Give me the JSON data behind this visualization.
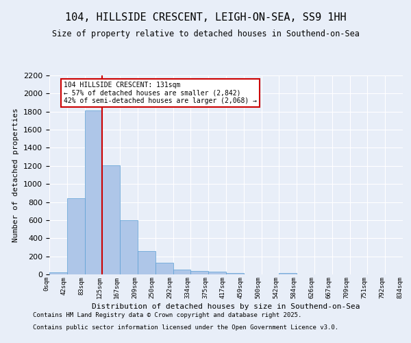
{
  "title": "104, HILLSIDE CRESCENT, LEIGH-ON-SEA, SS9 1HH",
  "subtitle": "Size of property relative to detached houses in Southend-on-Sea",
  "xlabel": "Distribution of detached houses by size in Southend-on-Sea",
  "ylabel": "Number of detached properties",
  "bar_values": [
    25,
    845,
    1810,
    1210,
    600,
    255,
    130,
    50,
    40,
    30,
    15,
    0,
    0,
    15,
    0,
    0,
    0,
    0,
    0,
    0
  ],
  "bin_labels": [
    "0sqm",
    "42sqm",
    "83sqm",
    "125sqm",
    "167sqm",
    "209sqm",
    "250sqm",
    "292sqm",
    "334sqm",
    "375sqm",
    "417sqm",
    "459sqm",
    "500sqm",
    "542sqm",
    "584sqm",
    "626sqm",
    "667sqm",
    "709sqm",
    "751sqm",
    "792sqm",
    "834sqm"
  ],
  "bar_color": "#aec6e8",
  "bar_edge_color": "#5a9fd4",
  "background_color": "#e8eef8",
  "grid_color": "#ffffff",
  "vline_x": 2.5,
  "vline_color": "#cc0000",
  "annotation_text": "104 HILLSIDE CRESCENT: 131sqm\n← 57% of detached houses are smaller (2,842)\n42% of semi-detached houses are larger (2,068) →",
  "annotation_box_color": "#cc0000",
  "ylim": [
    0,
    2200
  ],
  "yticks": [
    0,
    200,
    400,
    600,
    800,
    1000,
    1200,
    1400,
    1600,
    1800,
    2000,
    2200
  ],
  "footer_line1": "Contains HM Land Registry data © Crown copyright and database right 2025.",
  "footer_line2": "Contains public sector information licensed under the Open Government Licence v3.0."
}
